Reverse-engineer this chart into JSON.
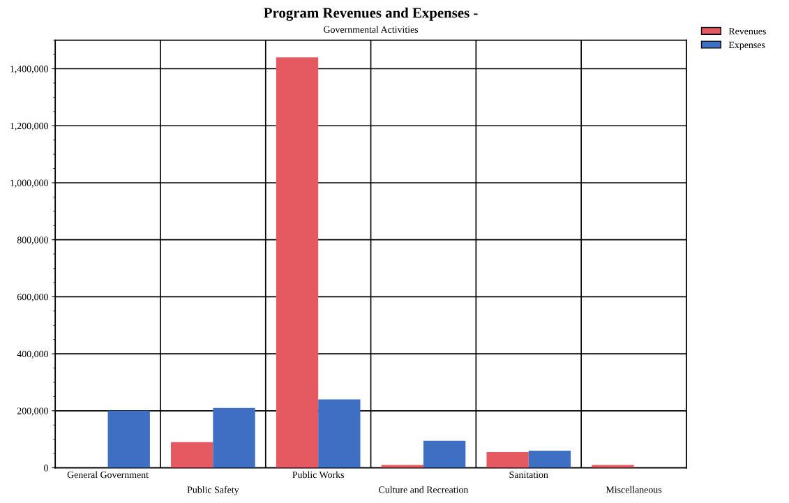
{
  "chart_data": {
    "type": "bar",
    "title": "Program Revenues and Expenses -",
    "subtitle": "Governmental Activities",
    "categories": [
      "General Government",
      "Public Safety",
      "Public Works",
      "Culture and Recreation",
      "Sanitation",
      "Miscellaneous"
    ],
    "series": [
      {
        "name": "Revenues",
        "color": "#e45a60",
        "values": [
          0,
          90000,
          1440000,
          10000,
          55000,
          10000
        ]
      },
      {
        "name": "Expenses",
        "color": "#3f6fc2",
        "values": [
          200000,
          210000,
          240000,
          95000,
          60000,
          0
        ]
      }
    ],
    "ylim": [
      0,
      1500000
    ],
    "yticks": [
      {
        "value": 0,
        "label": "0"
      },
      {
        "value": 200000,
        "label": "200,000"
      },
      {
        "value": 400000,
        "label": "400,000"
      },
      {
        "value": 600000,
        "label": "600,000"
      },
      {
        "value": 800000,
        "label": "800,000"
      },
      {
        "value": 1000000,
        "label": "1,000,000"
      },
      {
        "value": 1200000,
        "label": "1,200,000"
      },
      {
        "value": 1400000,
        "label": "1,400,000"
      }
    ],
    "grid": true,
    "legend": "top right"
  }
}
